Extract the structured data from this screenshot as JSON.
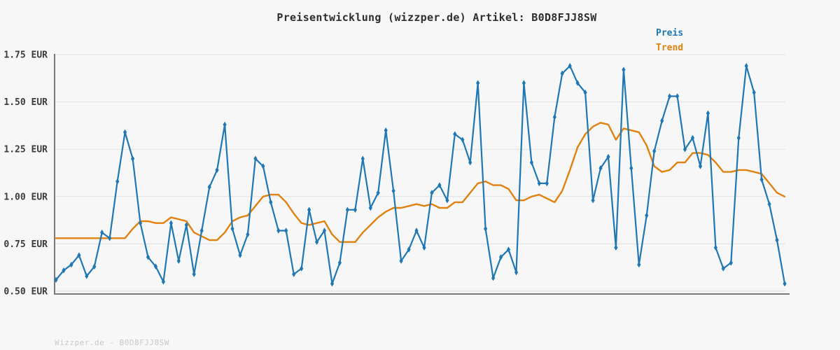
{
  "page": {
    "background": "#f7f7f7",
    "title": "Preisentwicklung (wizzper.de) Artikel: B0D8FJJ8SW",
    "footer": "Wizzper.de - B0D8FJJ8SW"
  },
  "legend": {
    "position": "top-right",
    "items": [
      {
        "label": "Preis",
        "color": "#1f77b4"
      },
      {
        "label": "Trend",
        "color": "#e0820f"
      }
    ]
  },
  "chart_data": {
    "type": "line",
    "title": "Preisentwicklung (wizzper.de) Artikel: B0D8FJJ8SW",
    "xlabel": "",
    "ylabel": "",
    "currency": "EUR",
    "grid": true,
    "legend_position": "top-right",
    "ylim": [
      0.485,
      1.75
    ],
    "y_ticks": [
      {
        "value": 1.75,
        "label": "1.75 EUR"
      },
      {
        "value": 1.5,
        "label": "1.50 EUR"
      },
      {
        "value": 1.25,
        "label": "1.25 EUR"
      },
      {
        "value": 1.0,
        "label": "1.00 EUR"
      },
      {
        "value": 0.75,
        "label": "0.75 EUR"
      },
      {
        "value": 0.5,
        "label": "0.50 EUR"
      }
    ],
    "x_tick_labels": [],
    "series": [
      {
        "name": "Preis",
        "color": "#1f77b4",
        "marker": "thin-diamond",
        "line_width": 2.2,
        "values": [
          0.56,
          0.61,
          0.64,
          0.69,
          0.58,
          0.63,
          0.81,
          0.78,
          1.08,
          1.34,
          1.2,
          0.86,
          0.68,
          0.63,
          0.55,
          0.86,
          0.66,
          0.85,
          0.59,
          0.82,
          1.05,
          1.14,
          1.38,
          0.83,
          0.69,
          0.8,
          1.2,
          1.16,
          0.97,
          0.82,
          0.82,
          0.59,
          0.62,
          0.93,
          0.76,
          0.82,
          0.54,
          0.65,
          0.93,
          0.93,
          1.2,
          0.94,
          1.02,
          1.35,
          1.03,
          0.66,
          0.72,
          0.82,
          0.73,
          1.02,
          1.06,
          0.98,
          1.33,
          1.3,
          1.18,
          1.6,
          0.83,
          0.57,
          0.68,
          0.72,
          0.6,
          1.6,
          1.18,
          1.07,
          1.07,
          1.42,
          1.65,
          1.69,
          1.6,
          1.55,
          0.98,
          1.15,
          1.21,
          0.73,
          1.67,
          1.15,
          0.64,
          0.9,
          1.24,
          1.4,
          1.53,
          1.53,
          1.25,
          1.31,
          1.16,
          1.44,
          0.73,
          0.62,
          0.65,
          1.31,
          1.69,
          1.55,
          1.09,
          0.96,
          0.77,
          0.54
        ]
      },
      {
        "name": "Trend",
        "color": "#e0820f",
        "marker": "none",
        "line_width": 2.4,
        "values": [
          0.78,
          0.78,
          0.78,
          0.78,
          0.78,
          0.78,
          0.78,
          0.78,
          0.78,
          0.78,
          0.83,
          0.87,
          0.87,
          0.86,
          0.86,
          0.89,
          0.88,
          0.87,
          0.81,
          0.79,
          0.77,
          0.77,
          0.81,
          0.87,
          0.89,
          0.9,
          0.95,
          1.0,
          1.01,
          1.01,
          0.97,
          0.91,
          0.86,
          0.85,
          0.86,
          0.87,
          0.8,
          0.76,
          0.76,
          0.76,
          0.81,
          0.85,
          0.89,
          0.92,
          0.94,
          0.94,
          0.95,
          0.96,
          0.95,
          0.96,
          0.94,
          0.94,
          0.97,
          0.97,
          1.02,
          1.07,
          1.08,
          1.06,
          1.06,
          1.04,
          0.98,
          0.98,
          1.0,
          1.01,
          0.99,
          0.97,
          1.03,
          1.14,
          1.26,
          1.33,
          1.37,
          1.39,
          1.38,
          1.3,
          1.36,
          1.35,
          1.34,
          1.27,
          1.16,
          1.13,
          1.14,
          1.18,
          1.18,
          1.23,
          1.23,
          1.22,
          1.18,
          1.13,
          1.13,
          1.14,
          1.14,
          1.13,
          1.12,
          1.07,
          1.02,
          1.0
        ]
      }
    ]
  },
  "style": {
    "grid_color": "#e2e2e2",
    "spine_color": "#7a7a7a",
    "tick_label_color": "#3c3c3c"
  }
}
